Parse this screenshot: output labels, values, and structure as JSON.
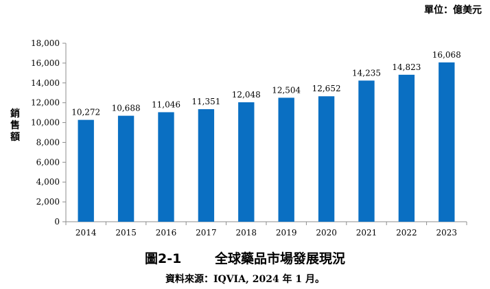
{
  "unit_label": "單位：億美元",
  "caption": {
    "figure_number": "圖2-1",
    "title": "全球藥品市場發展現況"
  },
  "source_note": "資料來源：IQVIA, 2024 年 1 月。",
  "colors": {
    "bar": "#0a6fc2",
    "axis": "#8c8c8c"
  },
  "chart_data": {
    "type": "bar",
    "title": "",
    "xlabel": "",
    "ylabel": "銷售額",
    "categories": [
      "2014",
      "2015",
      "2016",
      "2017",
      "2018",
      "2019",
      "2020",
      "2021",
      "2022",
      "2023"
    ],
    "series": [
      {
        "values": [
          10272,
          10688,
          11046,
          11351,
          12048,
          12504,
          12652,
          14235,
          14823,
          16068
        ],
        "data_labels": [
          "10,272",
          "10,688",
          "11,046",
          "11,351",
          "12,048",
          "12,504",
          "12,652",
          "14,235",
          "14,823",
          "16,068"
        ]
      }
    ],
    "ylim": [
      0,
      18000
    ],
    "yticks": [
      0,
      2000,
      4000,
      6000,
      8000,
      10000,
      12000,
      14000,
      16000,
      18000
    ],
    "ytick_labels": [
      "0",
      "2,000",
      "4,000",
      "6,000",
      "8,000",
      "10,000",
      "12,000",
      "14,000",
      "16,000",
      "18,000"
    ],
    "grid": false,
    "legend": "none"
  }
}
